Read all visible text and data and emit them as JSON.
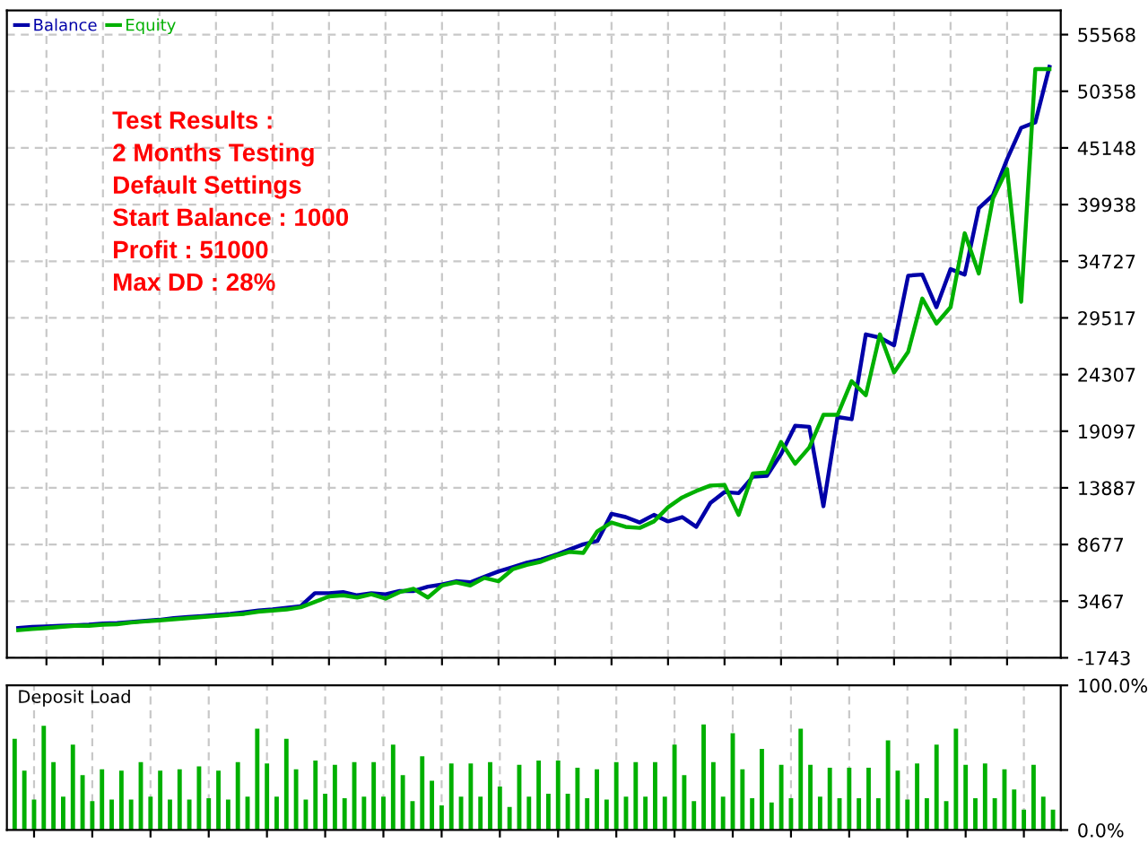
{
  "chart_data": [
    {
      "type": "line",
      "categories": [
        null,
        null,
        null,
        null,
        null,
        null,
        null,
        null,
        null,
        null,
        null,
        null,
        null,
        null,
        null,
        null,
        null,
        null,
        null,
        null,
        null,
        null,
        null,
        null,
        null,
        null,
        null,
        null,
        null,
        null,
        null,
        null,
        null,
        null,
        null,
        null,
        null,
        null,
        null,
        null,
        null,
        null,
        null,
        null,
        null,
        null,
        null,
        null,
        null,
        null,
        null,
        null,
        null,
        null,
        null,
        null,
        null,
        null,
        null,
        null,
        null,
        null,
        null,
        null,
        null,
        null,
        null,
        null,
        null,
        null,
        null,
        null,
        null,
        null
      ],
      "series": [
        {
          "name": "Balance",
          "color": "#0000a8",
          "values": [
            1000,
            1100,
            1150,
            1200,
            1250,
            1300,
            1400,
            1450,
            1550,
            1650,
            1750,
            1900,
            2000,
            2100,
            2200,
            2300,
            2450,
            2600,
            2700,
            2850,
            3000,
            4200,
            4200,
            4300,
            4000,
            4200,
            4100,
            4400,
            4400,
            4800,
            5000,
            5300,
            5200,
            5700,
            6200,
            6600,
            7000,
            7300,
            7700,
            8200,
            8700,
            9000,
            11500,
            11200,
            10700,
            11400,
            10800,
            11200,
            10300,
            12500,
            13500,
            13400,
            14900,
            15000,
            17000,
            19600,
            19500,
            12200,
            20400,
            20200,
            28000,
            27700,
            27000,
            33400,
            33500,
            30500,
            34000,
            33500,
            39600,
            40800,
            44100,
            47000,
            47500,
            52600
          ]
        },
        {
          "name": "Equity",
          "color": "#00b000",
          "values": [
            800,
            900,
            1000,
            1100,
            1200,
            1200,
            1300,
            1350,
            1500,
            1600,
            1700,
            1800,
            1900,
            2000,
            2100,
            2200,
            2300,
            2500,
            2600,
            2700,
            2900,
            3400,
            3900,
            4000,
            3800,
            4100,
            3700,
            4300,
            4600,
            3800,
            4900,
            5200,
            4900,
            5600,
            5300,
            6400,
            6800,
            7100,
            7600,
            8000,
            7900,
            9900,
            10700,
            10300,
            10200,
            10800,
            12100,
            13000,
            13600,
            14100,
            14150,
            11400,
            15200,
            15300,
            18100,
            16100,
            17600,
            20600,
            20600,
            23700,
            22400,
            28000,
            24500,
            26400,
            31300,
            29000,
            30500,
            37300,
            33600,
            40500,
            43200,
            31000,
            52400,
            52400
          ]
        }
      ],
      "ylim": [
        -1743,
        57800
      ],
      "yticks": [
        -1743,
        3467,
        8677,
        13887,
        19097,
        24307,
        29517,
        34727,
        39938,
        45148,
        50358,
        55568
      ],
      "tick_labels": "y",
      "grid": true,
      "legend": "top left",
      "line_style": "solid",
      "marker": "none",
      "annotations": [
        "Test Results :",
        "2 Months Testing",
        "Default Settings",
        "Start Balance : 1000",
        "Profit : 51000",
        "Max DD : 28%"
      ]
    },
    {
      "type": "bar",
      "title": "Deposit Load",
      "categories": [
        null,
        null,
        null,
        null,
        null,
        null,
        null,
        null,
        null,
        null,
        null,
        null,
        null,
        null,
        null,
        null,
        null,
        null,
        null,
        null,
        null,
        null,
        null,
        null,
        null,
        null,
        null,
        null,
        null,
        null,
        null,
        null,
        null,
        null,
        null,
        null,
        null,
        null,
        null,
        null,
        null,
        null,
        null,
        null,
        null,
        null,
        null,
        null,
        null,
        null,
        null,
        null,
        null,
        null,
        null,
        null,
        null,
        null,
        null,
        null,
        null,
        null,
        null,
        null,
        null,
        null,
        null,
        null,
        null,
        null,
        null,
        null,
        null,
        null,
        null,
        null,
        null,
        null,
        null,
        null,
        null,
        null,
        null,
        null,
        null,
        null,
        null,
        null,
        null,
        null,
        null,
        null,
        null,
        null,
        null,
        null,
        null,
        null,
        null,
        null,
        null,
        null,
        null,
        null,
        null,
        null,
        null,
        null
      ],
      "values": [
        63,
        41,
        21,
        72,
        47,
        23,
        59,
        38,
        20,
        42,
        21,
        41,
        21,
        47,
        23,
        41,
        21,
        42,
        21,
        44,
        22,
        41,
        21,
        47,
        23,
        70,
        46,
        23,
        63,
        42,
        21,
        48,
        25,
        45,
        22,
        47,
        23,
        47,
        23,
        59,
        38,
        20,
        51,
        34,
        17,
        46,
        23,
        46,
        23,
        47,
        30,
        16,
        45,
        23,
        48,
        25,
        48,
        25,
        43,
        22,
        42,
        21,
        47,
        23,
        47,
        23,
        47,
        23,
        59,
        38,
        20,
        73,
        47,
        23,
        67,
        42,
        22,
        56,
        19,
        45,
        22,
        70,
        45,
        23,
        43,
        22,
        43,
        22,
        43,
        22,
        62,
        41,
        21,
        46,
        22,
        59,
        20,
        70,
        45,
        22,
        46,
        22,
        42,
        28,
        14,
        45,
        23,
        14
      ],
      "color": "#00b000",
      "ylim": [
        0,
        100
      ],
      "yticks": [
        {
          "value": 0,
          "label": "0.0%"
        },
        {
          "value": 100,
          "label": "100.0%"
        }
      ],
      "tick_labels": "y",
      "grid": "x"
    }
  ]
}
